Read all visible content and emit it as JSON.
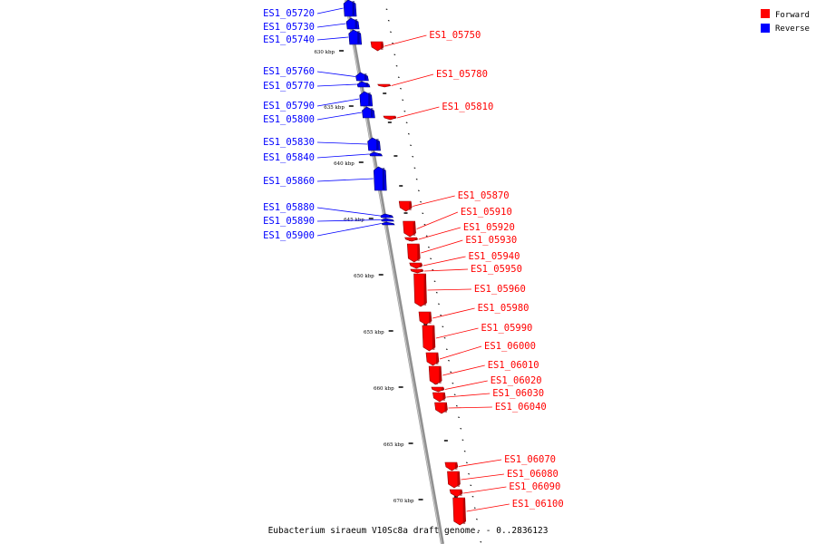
{
  "legend": {
    "forward_label": "Forward",
    "reverse_label": "Reverse",
    "forward_color": "#ff0000",
    "reverse_color": "#0000ff"
  },
  "caption": "Eubacterium siraeum V10Sc8a draft genome. - 0..2836123",
  "axis": {
    "unit": "kbp",
    "tick_labels": [
      "630 kbp",
      "635 kbp",
      "640 kbp",
      "645 kbp",
      "650 kbp",
      "655 kbp",
      "660 kbp",
      "665 kbp",
      "670 kbp"
    ]
  },
  "genes": {
    "reverse": [
      "ES1_05720",
      "ES1_05730",
      "ES1_05740",
      "ES1_05760",
      "ES1_05770",
      "ES1_05790",
      "ES1_05800",
      "ES1_05830",
      "ES1_05840",
      "ES1_05860",
      "ES1_05880",
      "ES1_05890",
      "ES1_05900"
    ],
    "forward": [
      "ES1_05750",
      "ES1_05780",
      "ES1_05810",
      "ES1_05870",
      "ES1_05910",
      "ES1_05920",
      "ES1_05930",
      "ES1_05940",
      "ES1_05950",
      "ES1_05960",
      "ES1_05980",
      "ES1_05990",
      "ES1_06000",
      "ES1_06010",
      "ES1_06020",
      "ES1_06030",
      "ES1_06040",
      "ES1_06070",
      "ES1_06080",
      "ES1_06090",
      "ES1_06100"
    ]
  }
}
